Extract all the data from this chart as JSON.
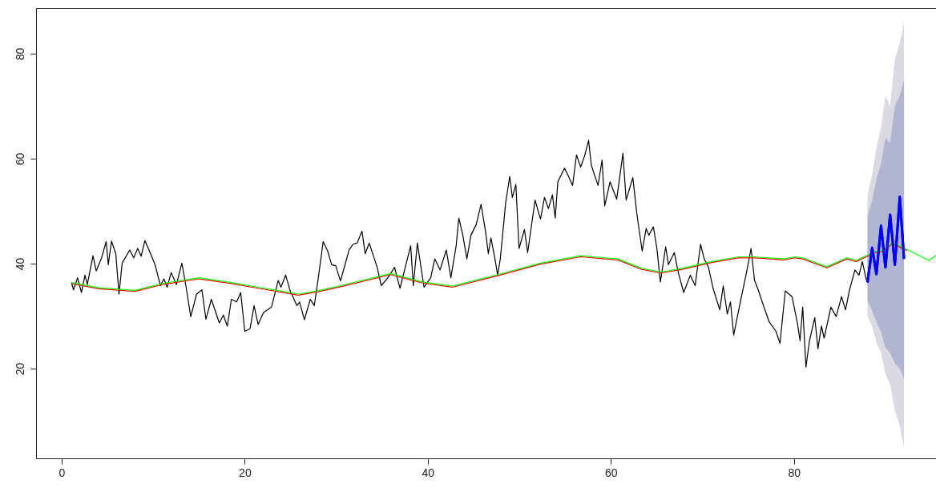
{
  "chart_data": {
    "type": "line",
    "xlim": [
      -2.8,
      95.7
    ],
    "ylim": [
      2.9,
      88.7
    ],
    "xticks": [
      0,
      20,
      40,
      60,
      80
    ],
    "yticks": [
      20,
      40,
      60,
      80
    ],
    "grid": false,
    "marker": "none",
    "line_style": "solid",
    "series": [
      {
        "color": "#0000ff",
        "x": [
          88.04,
          88.55,
          89.01,
          89.52,
          90.0,
          90.51,
          91.03,
          91.57,
          92.03
        ],
        "values": [
          36.4,
          43.0,
          38.0,
          47.2,
          39.3,
          49.3,
          39.8,
          52.7,
          40.9
        ],
        "lower": [
          30,
          28,
          25,
          23,
          19,
          17,
          12,
          9,
          5
        ],
        "upper": [
          53,
          57,
          62,
          66,
          72,
          70,
          79,
          82,
          86
        ]
      },
      {
        "color": "#000000",
        "x": [
          1.08,
          1.29,
          1.73,
          2.16,
          2.54,
          2.8,
          3.42,
          3.77,
          4.36,
          4.86,
          5.09,
          5.44,
          5.91,
          6.26,
          6.61,
          7.43,
          7.87,
          8.3,
          8.68,
          9.09,
          9.47,
          10.2,
          10.79,
          11.17,
          11.52,
          11.96,
          12.54,
          13.13,
          13.57,
          14.1,
          14.74,
          15.32,
          15.76,
          16.35,
          17.22,
          17.66,
          18.1,
          18.54,
          19.12,
          19.56,
          20.0,
          20.58,
          21.02,
          21.46,
          22.05,
          22.92,
          23.66,
          23.95,
          24.47,
          24.97,
          25.7,
          25.99,
          26.52,
          27.16,
          27.6,
          28.04,
          28.57,
          29.06,
          29.5,
          29.94,
          30.46,
          30.53,
          31.4,
          31.84,
          32.28,
          32.81,
          33.16,
          33.6,
          34.47,
          34.91,
          35.64,
          36.37,
          36.96,
          38.13,
          38.42,
          38.86,
          39.59,
          40.32,
          40.76,
          41.34,
          42.02,
          42.52,
          43.1,
          43.39,
          43.83,
          44.27,
          44.71,
          45.3,
          45.82,
          46.32,
          46.61,
          46.9,
          47.34,
          47.63,
          47.92,
          48.51,
          48.95,
          49.24,
          49.62,
          49.97,
          50.56,
          50.91,
          51.72,
          52.31,
          52.75,
          53.18,
          53.62,
          53.92,
          54.21,
          54.94,
          55.38,
          55.82,
          56.25,
          56.7,
          57.13,
          57.57,
          57.87,
          58.6,
          59.04,
          59.33,
          59.91,
          60.64,
          61.32,
          61.67,
          62.4,
          62.84,
          63.42,
          63.86,
          64.15,
          64.65,
          65.03,
          65.41,
          65.99,
          66.29,
          66.93,
          67.37,
          67.96,
          68.68,
          69.21,
          69.8,
          70.2,
          70.67,
          71.17,
          71.9,
          72.28,
          72.72,
          73.07,
          73.42,
          74.09,
          74.82,
          75.32,
          75.7,
          76.14,
          76.73,
          77.3,
          78.04,
          78.48,
          79.06,
          79.8,
          80.38,
          80.67,
          80.96,
          81.32,
          81.7,
          82.28,
          82.63,
          83.01,
          83.3,
          84.04,
          84.62,
          85.2,
          85.64,
          86.08,
          86.67,
          87.11,
          87.48,
          87.92
        ],
        "values": [
          36.3,
          35.0,
          37.3,
          34.5,
          37.8,
          36.0,
          41.5,
          38.6,
          41.1,
          44.2,
          39.8,
          44.3,
          41.9,
          34.2,
          40.1,
          42.6,
          41.1,
          42.9,
          41.4,
          44.4,
          42.9,
          39.8,
          35.8,
          37.1,
          35.5,
          38.3,
          36.0,
          40.1,
          35.8,
          29.9,
          34.2,
          35.0,
          29.4,
          33.2,
          28.7,
          30.2,
          28.1,
          33.2,
          32.7,
          34.5,
          27.1,
          27.6,
          32.0,
          28.4,
          30.7,
          31.7,
          36.8,
          35.5,
          37.8,
          34.8,
          32.0,
          32.7,
          29.3,
          33.2,
          32.0,
          37.3,
          44.2,
          42.4,
          39.8,
          39.6,
          36.7,
          37.1,
          42.6,
          43.7,
          43.9,
          46.2,
          41.9,
          43.9,
          39.3,
          35.8,
          37.3,
          39.3,
          35.3,
          43.4,
          35.8,
          43.9,
          35.5,
          37.3,
          40.9,
          38.8,
          42.6,
          37.3,
          43.4,
          48.7,
          45.4,
          40.9,
          45.4,
          47.5,
          51.3,
          46.0,
          41.9,
          44.9,
          40.9,
          37.8,
          40.9,
          51.6,
          56.6,
          52.6,
          55.1,
          42.9,
          46.5,
          42.1,
          52.1,
          48.5,
          52.6,
          50.5,
          53.1,
          48.7,
          55.6,
          58.2,
          56.6,
          54.9,
          60.7,
          58.4,
          60.5,
          63.5,
          58.7,
          54.9,
          59.7,
          51.0,
          55.6,
          52.3,
          61.0,
          52.1,
          56.4,
          49.5,
          42.4,
          46.7,
          45.4,
          47.0,
          42.9,
          36.5,
          43.2,
          39.8,
          42.1,
          38.3,
          34.5,
          37.8,
          35.8,
          43.7,
          40.9,
          39.3,
          35.3,
          31.2,
          35.8,
          30.4,
          32.7,
          26.4,
          32.2,
          38.3,
          42.9,
          36.8,
          34.8,
          31.7,
          28.9,
          27.1,
          24.8,
          34.8,
          33.7,
          28.7,
          25.3,
          31.7,
          20.3,
          25.3,
          29.7,
          23.8,
          28.1,
          25.8,
          31.7,
          29.9,
          33.7,
          31.2,
          35.0,
          38.8,
          37.8,
          40.4,
          36.8
        ]
      },
      {
        "color": "#ff0000",
        "x": [
          1.08,
          4.06,
          8.0,
          11.23,
          15.03,
          18.54,
          21.46,
          23.5,
          25.85,
          27.9,
          30.46,
          35.94,
          39.45,
          42.66,
          47.63,
          52.31,
          56.7,
          60.79,
          63.36,
          65.47,
          67.81,
          71.02,
          73.95,
          75.7,
          78.92,
          80.09,
          80.96,
          83.6,
          85.79,
          86.81,
          88.86,
          89.61,
          90.82,
          92.34
        ],
        "values": [
          36.2,
          35.2,
          34.7,
          36.1,
          37.1,
          36.2,
          35.3,
          34.7,
          34.0,
          34.6,
          35.6,
          37.9,
          36.3,
          35.5,
          37.7,
          39.9,
          41.3,
          40.7,
          38.9,
          38.2,
          38.9,
          40.2,
          41.1,
          41.1,
          40.7,
          41.1,
          40.9,
          39.2,
          40.9,
          40.4,
          42.1,
          42.3,
          43.8,
          42.5
        ]
      },
      {
        "color": "#00ff00",
        "x": [
          1.08,
          4.06,
          8.0,
          11.23,
          15.03,
          18.54,
          21.46,
          23.5,
          25.85,
          27.9,
          30.46,
          35.94,
          39.45,
          42.66,
          47.63,
          52.31,
          56.7,
          60.79,
          63.36,
          65.47,
          67.81,
          71.02,
          73.95,
          75.7,
          78.92,
          80.09,
          80.96,
          83.6,
          85.79,
          86.81,
          88.86,
          89.61,
          90.82,
          92.34,
          94.75,
          95.7
        ],
        "values": [
          36.4,
          35.4,
          34.9,
          36.3,
          37.3,
          36.4,
          35.5,
          34.9,
          34.2,
          34.8,
          35.8,
          38.1,
          36.5,
          35.7,
          37.9,
          40.1,
          41.5,
          40.9,
          39.1,
          38.4,
          39.1,
          40.4,
          41.3,
          41.3,
          40.9,
          41.3,
          41.1,
          39.4,
          41.1,
          40.6,
          42.3,
          42.5,
          44.0,
          42.7,
          40.6,
          41.7
        ]
      },
      {
        "color": "#0000ff",
        "x": [
          88.04,
          88.55,
          89.01,
          89.52,
          90.0,
          90.51,
          91.03,
          91.57,
          92.03
        ],
        "values": [
          36.4,
          43.0,
          38.0,
          47.2,
          39.3,
          49.3,
          39.8,
          52.7,
          40.9
        ],
        "lower": [
          33,
          31,
          29,
          27,
          24,
          23,
          21,
          20,
          18
        ],
        "upper": [
          49,
          52,
          56,
          59,
          64,
          63,
          70,
          72,
          75
        ]
      }
    ]
  }
}
